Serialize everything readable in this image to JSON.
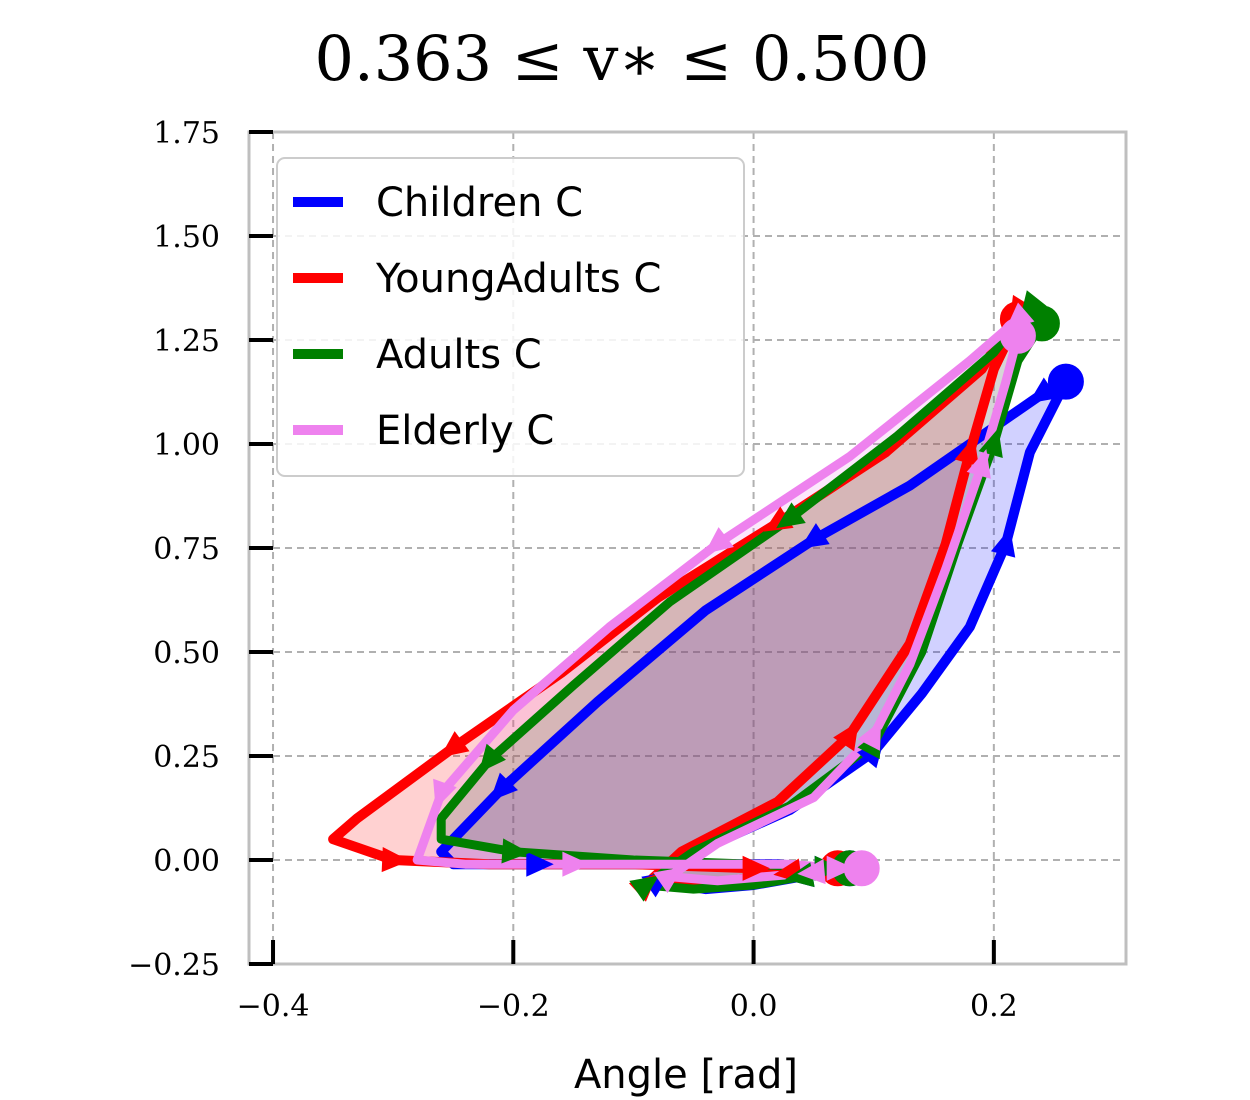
{
  "chart_data": {
    "type": "line",
    "title": "0.363 ≤ v∗ ≤ 0.500",
    "xlabel": "Angle [rad]",
    "ylabel": "",
    "xlim": [
      -0.42,
      0.31
    ],
    "ylim": [
      -0.25,
      1.75
    ],
    "x_ticks": [
      -0.4,
      -0.2,
      0.0,
      0.2
    ],
    "x_tick_labels": [
      "−0.4",
      "−0.2",
      "0.0",
      "0.2"
    ],
    "y_ticks": [
      -0.25,
      0.0,
      0.25,
      0.5,
      0.75,
      1.0,
      1.25,
      1.5,
      1.75
    ],
    "y_tick_labels": [
      "−0.25",
      "0.00",
      "0.25",
      "0.50",
      "0.75",
      "1.00",
      "1.25",
      "1.50",
      "1.75"
    ],
    "grid": true,
    "legend_position": "upper-left",
    "series": [
      {
        "name": "Children C",
        "color": "#0000ff",
        "x": [
          0.08,
          0.04,
          0.0,
          -0.04,
          -0.08,
          -0.04,
          0.03,
          0.1,
          0.14,
          0.18,
          0.21,
          0.23,
          0.26,
          0.24,
          0.2,
          0.13,
          0.05,
          -0.04,
          -0.13,
          -0.21,
          -0.26,
          -0.25,
          -0.18,
          -0.08,
          0.02,
          0.06
        ],
        "y": [
          -0.02,
          -0.04,
          -0.06,
          -0.07,
          -0.05,
          0.03,
          0.12,
          0.26,
          0.4,
          0.56,
          0.76,
          0.98,
          1.15,
          1.12,
          1.04,
          0.9,
          0.77,
          0.6,
          0.38,
          0.17,
          0.02,
          -0.01,
          -0.01,
          -0.01,
          -0.01,
          -0.02
        ]
      },
      {
        "name": "YoungAdults C",
        "color": "#ff0000",
        "x": [
          0.07,
          0.03,
          -0.02,
          -0.06,
          -0.09,
          -0.06,
          0.02,
          0.08,
          0.13,
          0.16,
          0.18,
          0.2,
          0.22,
          0.22,
          0.19,
          0.11,
          0.02,
          -0.08,
          -0.16,
          -0.25,
          -0.33,
          -0.35,
          -0.3,
          -0.22,
          -0.1,
          0.0,
          0.05
        ],
        "y": [
          -0.02,
          -0.03,
          -0.05,
          -0.06,
          -0.06,
          0.02,
          0.14,
          0.3,
          0.52,
          0.76,
          0.98,
          1.18,
          1.3,
          1.32,
          1.18,
          0.98,
          0.81,
          0.63,
          0.45,
          0.27,
          0.1,
          0.05,
          0.0,
          -0.01,
          -0.01,
          -0.02,
          -0.02
        ]
      },
      {
        "name": "Adults C",
        "color": "#008000",
        "x": [
          0.08,
          0.04,
          0.0,
          -0.05,
          -0.09,
          -0.05,
          0.03,
          0.1,
          0.14,
          0.17,
          0.2,
          0.22,
          0.24,
          0.23,
          0.2,
          0.12,
          0.03,
          -0.07,
          -0.15,
          -0.22,
          -0.26,
          -0.26,
          -0.2,
          -0.1,
          0.0,
          0.06
        ],
        "y": [
          -0.02,
          -0.04,
          -0.06,
          -0.07,
          -0.06,
          0.02,
          0.13,
          0.28,
          0.5,
          0.76,
          1.0,
          1.2,
          1.29,
          1.33,
          1.22,
          1.02,
          0.82,
          0.62,
          0.42,
          0.24,
          0.1,
          0.05,
          0.02,
          0.0,
          -0.01,
          -0.02
        ]
      },
      {
        "name": "Elderly C",
        "color": "#ee82ee",
        "x": [
          0.09,
          0.05,
          0.01,
          -0.03,
          -0.07,
          -0.03,
          0.05,
          0.1,
          0.13,
          0.16,
          0.19,
          0.21,
          0.22,
          0.22,
          0.18,
          0.08,
          -0.03,
          -0.12,
          -0.2,
          -0.26,
          -0.28,
          -0.24,
          -0.15,
          -0.05,
          0.03,
          0.07
        ],
        "y": [
          -0.02,
          -0.03,
          -0.04,
          -0.05,
          -0.04,
          0.04,
          0.15,
          0.3,
          0.47,
          0.7,
          0.95,
          1.15,
          1.26,
          1.3,
          1.2,
          0.97,
          0.76,
          0.56,
          0.36,
          0.16,
          0.0,
          -0.01,
          -0.01,
          -0.01,
          -0.01,
          -0.02
        ]
      }
    ]
  }
}
